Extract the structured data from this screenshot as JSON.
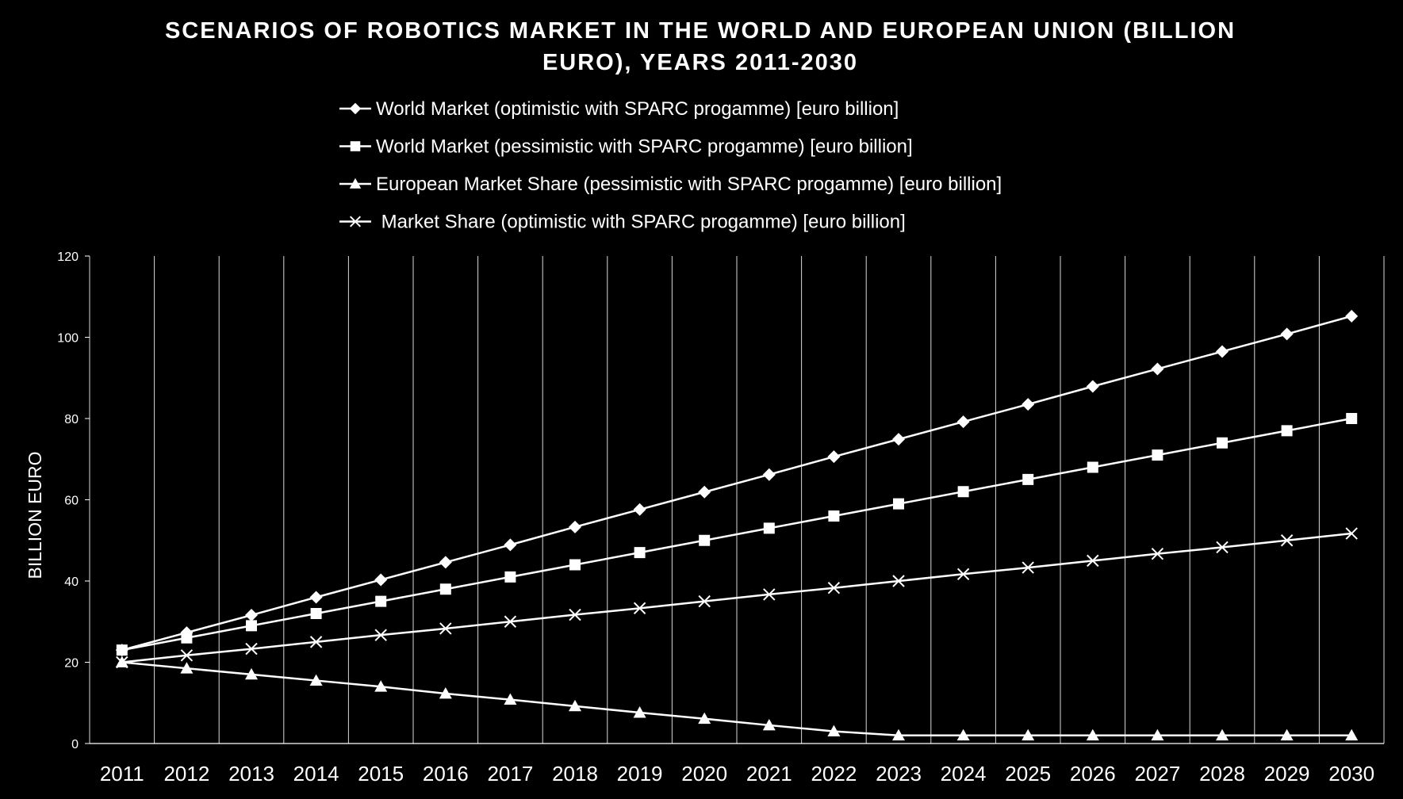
{
  "colors": {
    "background": "#000000",
    "foreground": "#ffffff",
    "gridline": "#ffffff"
  },
  "chart_data": {
    "type": "line",
    "title_line1": "SCENARIOS OF ROBOTICS MARKET IN THE WORLD AND EUROPEAN UNION (BILLION",
    "title_line2": "EURO), YEARS 2011-2030",
    "xlabel": "",
    "ylabel": "BILLION EURO",
    "ylim": [
      0,
      120
    ],
    "yticks": [
      "0",
      "20",
      "40",
      "60",
      "80",
      "100",
      "120"
    ],
    "grid": "vertical",
    "legend_placement": "top",
    "categories": [
      "2011",
      "2012",
      "2013",
      "2014",
      "2015",
      "2016",
      "2017",
      "2018",
      "2019",
      "2020",
      "2021",
      "2022",
      "2023",
      "2024",
      "2025",
      "2026",
      "2027",
      "2028",
      "2029",
      "2030"
    ],
    "series": [
      {
        "name": "World Market (optimistic with SPARC progamme) [euro billion]",
        "marker": "diamond",
        "values": [
          23,
          27.3,
          31.6,
          36,
          40.3,
          44.6,
          48.9,
          53.3,
          57.6,
          61.9,
          66.2,
          70.6,
          74.9,
          79.2,
          83.5,
          87.9,
          92.2,
          96.5,
          100.8,
          105.2
        ]
      },
      {
        "name": "World Market (pessimistic with SPARC progamme) [euro billion]",
        "marker": "square",
        "values": [
          23,
          26,
          29,
          32,
          35,
          38,
          41,
          44,
          47,
          50,
          53,
          56,
          59,
          62,
          65,
          68,
          71,
          74,
          77,
          80
        ]
      },
      {
        "name": "European Market Share (pessimistic with SPARC progamme) [euro billion]",
        "marker": "triangle",
        "values": [
          20,
          18.5,
          17,
          15.5,
          14,
          12.3,
          10.8,
          9.2,
          7.6,
          6.1,
          4.5,
          3,
          2,
          2,
          2,
          2,
          2,
          2,
          2,
          2
        ]
      },
      {
        "name": " Market Share (optimistic with SPARC progamme) [euro billion]",
        "marker": "x",
        "values": [
          20,
          21.7,
          23.3,
          25,
          26.7,
          28.3,
          30,
          31.7,
          33.3,
          35,
          36.7,
          38.3,
          40,
          41.7,
          43.3,
          45,
          46.7,
          48.3,
          50,
          51.7
        ]
      }
    ]
  }
}
